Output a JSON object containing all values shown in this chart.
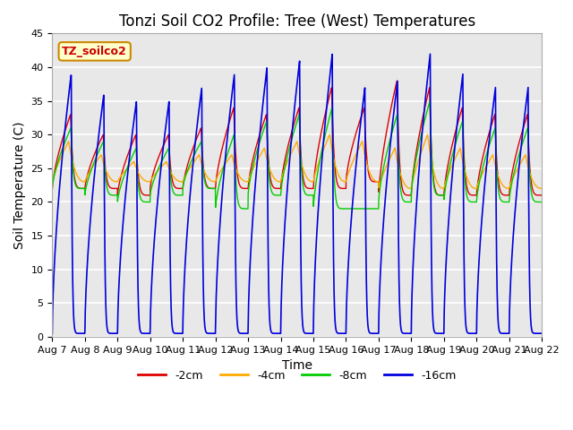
{
  "title": "Tonzi Soil CO2 Profile: Tree (West) Temperatures",
  "xlabel": "Time",
  "ylabel": "Soil Temperature (C)",
  "ylim": [
    0,
    45
  ],
  "xtick_labels": [
    "Aug 7",
    "Aug 8",
    "Aug 9",
    "Aug 10",
    "Aug 11",
    "Aug 12",
    "Aug 13",
    "Aug 14",
    "Aug 15",
    "Aug 16",
    "Aug 17",
    "Aug 18",
    "Aug 19",
    "Aug 20",
    "Aug 21",
    "Aug 22"
  ],
  "legend_label": "TZ_soilco2",
  "series_labels": [
    "-2cm",
    "-4cm",
    "-8cm",
    "-16cm"
  ],
  "series_colors": [
    "#dd0000",
    "#ffaa00",
    "#00cc00",
    "#0000dd"
  ],
  "plot_bg_color": "#e8e8e8",
  "title_fontsize": 12,
  "axis_fontsize": 10,
  "tick_fontsize": 8,
  "day_peaks_blue": [
    39,
    36,
    35,
    35,
    37,
    39,
    40,
    41,
    42,
    37,
    38,
    42,
    39,
    37,
    37,
    37
  ],
  "day_peaks_red": [
    33,
    30,
    30,
    30,
    31,
    34,
    33,
    34,
    37,
    34,
    38,
    37,
    34,
    33,
    33,
    35
  ],
  "day_peaks_green": [
    31,
    29,
    28,
    28,
    29,
    30,
    32,
    33,
    34,
    19,
    33,
    35,
    32,
    31,
    31,
    33
  ],
  "day_peaks_orange": [
    29,
    27,
    26,
    26,
    27,
    27,
    28,
    29,
    30,
    29,
    28,
    30,
    28,
    27,
    27,
    29
  ],
  "day_troughs_red": [
    22,
    22,
    21,
    22,
    22,
    22,
    22,
    22,
    22,
    23,
    21,
    21,
    21,
    21,
    21,
    22
  ],
  "day_troughs_green": [
    22,
    21,
    20,
    21,
    22,
    19,
    21,
    21,
    19,
    19,
    20,
    21,
    20,
    20,
    20,
    21
  ],
  "day_troughs_orange": [
    23,
    23,
    23,
    23,
    23,
    23,
    23,
    23,
    23,
    23,
    22,
    22,
    22,
    22,
    22,
    23
  ]
}
